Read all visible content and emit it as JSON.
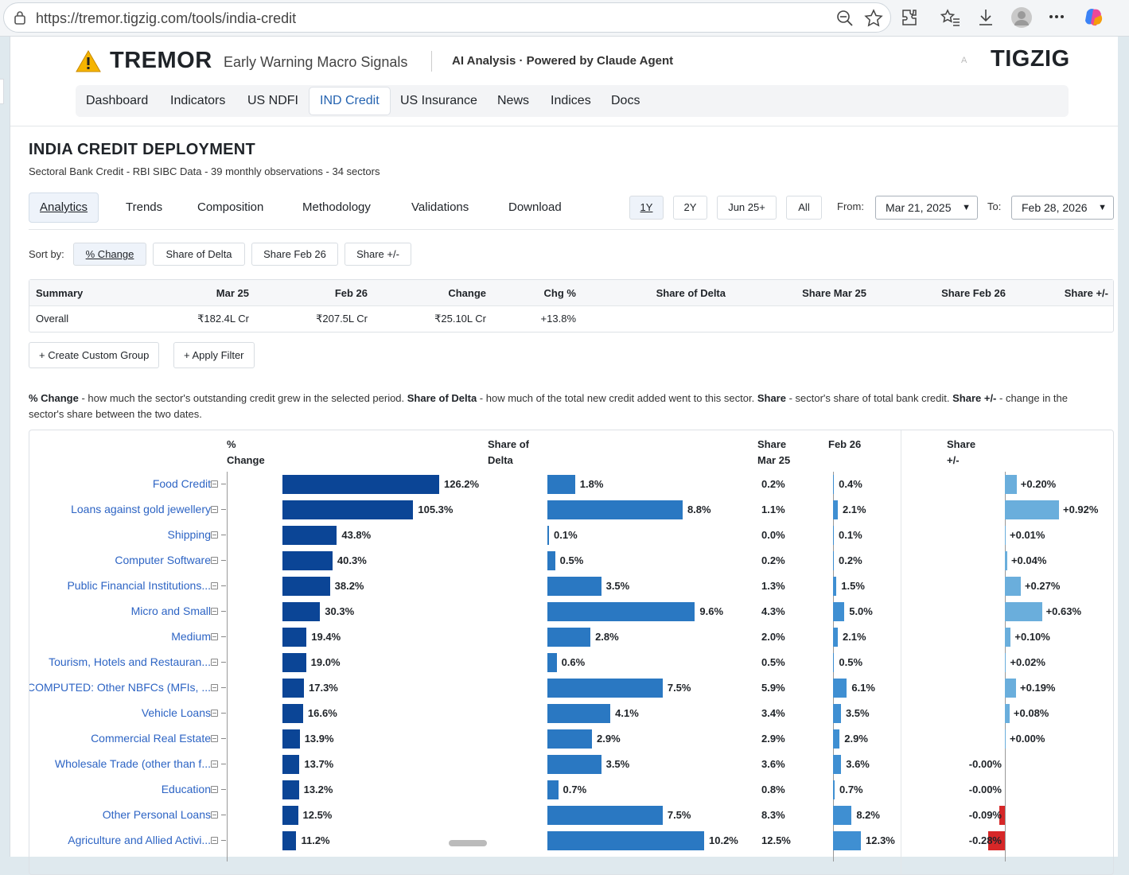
{
  "browser": {
    "url": "https://tremor.tigzig.com/tools/india-credit"
  },
  "header": {
    "brand_title": "TREMOR",
    "brand_subtitle": "Early Warning Macro Signals",
    "ai_text": "AI Analysis · Powered by Claude Agent",
    "small_a": "A",
    "logo": "TIGZIG"
  },
  "nav": {
    "items": [
      "Dashboard",
      "Indicators",
      "US NDFI",
      "IND Credit",
      "US Insurance",
      "News",
      "Indices",
      "Docs"
    ],
    "active": "IND Credit"
  },
  "page": {
    "title": "INDIA CREDIT DEPLOYMENT",
    "subtitle": "Sectoral Bank Credit - RBI SIBC Data - 39 monthly observations - 34 sectors"
  },
  "tabs": {
    "items": [
      "Analytics",
      "Trends",
      "Composition",
      "Methodology",
      "Validations",
      "Download"
    ],
    "active": "Analytics"
  },
  "period": {
    "buttons": [
      "1Y",
      "2Y",
      "Jun 25+",
      "All"
    ],
    "active": "1Y",
    "from_label": "From:",
    "from_value": "Mar 21, 2025",
    "to_label": "To:",
    "to_value": "Feb 28, 2026"
  },
  "sort": {
    "label": "Sort by:",
    "options": [
      "% Change",
      "Share of Delta",
      "Share Feb 26",
      "Share +/-"
    ],
    "active": "% Change"
  },
  "summary": {
    "headers": [
      "Summary",
      "Mar 25",
      "Feb 26",
      "Change",
      "Chg %",
      "Share of Delta",
      "Share Mar 25",
      "Share Feb 26",
      "Share +/-"
    ],
    "row": [
      "Overall",
      "₹182.4L Cr",
      "₹207.5L Cr",
      "₹25.10L Cr",
      "+13.8%",
      "",
      "",
      "",
      ""
    ]
  },
  "actions": {
    "create_group": "+ Create Custom Group",
    "apply_filter": "+ Apply Filter"
  },
  "description": {
    "t1": "% Change",
    "d1": " - how much the sector's outstanding credit grew in the selected period. ",
    "t2": "Share of Delta",
    "d2": " - how much of the total new credit added went to this sector. ",
    "t3": "Share",
    "d3": " - sector's share of total bank credit. ",
    "t4": "Share +/-",
    "d4": " - change in the sector's share between the two dates."
  },
  "chart_headers": {
    "pct_change": [
      "%",
      "Change"
    ],
    "share_delta": [
      "Share of",
      "Delta"
    ],
    "share_mar": [
      "Share",
      "Mar 25"
    ],
    "share_feb": [
      "",
      "Feb 26"
    ],
    "share_pm": [
      "Share",
      "+/-"
    ]
  },
  "colors": {
    "pct_change_bar": "#0b4596",
    "delta_bar": "#2a78c2",
    "share_feb_bar": "#3f8fd2",
    "positive_pm_bar": "#6aaedc",
    "negative_pm_bar": "#d62728",
    "link": "#2d64c4"
  },
  "chart_data": {
    "type": "bar",
    "categories": [
      "Food Credit",
      "Loans against gold jewellery",
      "Shipping",
      "Computer Software",
      "Public Financial Institutions...",
      "Micro and Small",
      "Medium",
      "Tourism, Hotels and Restauran...",
      "COMPUTED: Other NBFCs (MFIs, ...",
      "Vehicle Loans",
      "Commercial Real Estate",
      "Wholesale Trade (other than f...",
      "Education",
      "Other Personal Loans",
      "Agriculture and Allied Activi..."
    ],
    "series": [
      {
        "name": "% Change",
        "values": [
          126.2,
          105.3,
          43.8,
          40.3,
          38.2,
          30.3,
          19.4,
          19.0,
          17.3,
          16.6,
          13.9,
          13.7,
          13.2,
          12.5,
          11.2
        ]
      },
      {
        "name": "Share of Delta",
        "values": [
          1.8,
          8.8,
          0.1,
          0.5,
          3.5,
          9.6,
          2.8,
          0.6,
          7.5,
          4.1,
          2.9,
          3.5,
          0.7,
          7.5,
          10.2
        ]
      },
      {
        "name": "Share Mar 25",
        "values": [
          0.2,
          1.1,
          0.0,
          0.2,
          1.3,
          4.3,
          2.0,
          0.5,
          5.9,
          3.4,
          2.9,
          3.6,
          0.8,
          8.3,
          12.5
        ]
      },
      {
        "name": "Feb 26",
        "values": [
          0.4,
          2.1,
          0.1,
          0.2,
          1.5,
          5.0,
          2.1,
          0.5,
          6.1,
          3.5,
          2.9,
          3.6,
          0.7,
          8.2,
          12.3
        ]
      },
      {
        "name": "Share +/-",
        "values": [
          0.2,
          0.92,
          0.01,
          0.04,
          0.27,
          0.63,
          0.1,
          0.02,
          0.19,
          0.08,
          0.0,
          -0.0,
          -0.0,
          -0.09,
          -0.28
        ]
      }
    ],
    "value_labels": {
      "pct": [
        "126.2%",
        "105.3%",
        "43.8%",
        "40.3%",
        "38.2%",
        "30.3%",
        "19.4%",
        "19.0%",
        "17.3%",
        "16.6%",
        "13.9%",
        "13.7%",
        "13.2%",
        "12.5%",
        "11.2%"
      ],
      "delta": [
        "1.8%",
        "8.8%",
        "0.1%",
        "0.5%",
        "3.5%",
        "9.6%",
        "2.8%",
        "0.6%",
        "7.5%",
        "4.1%",
        "2.9%",
        "3.5%",
        "0.7%",
        "7.5%",
        "10.2%"
      ],
      "share_mar": [
        "0.2%",
        "1.1%",
        "0.0%",
        "0.2%",
        "1.3%",
        "4.3%",
        "2.0%",
        "0.5%",
        "5.9%",
        "3.4%",
        "2.9%",
        "3.6%",
        "0.8%",
        "8.3%",
        "12.5%"
      ],
      "share_feb": [
        "0.4%",
        "2.1%",
        "0.1%",
        "0.2%",
        "1.5%",
        "5.0%",
        "2.1%",
        "0.5%",
        "6.1%",
        "3.5%",
        "2.9%",
        "3.6%",
        "0.7%",
        "8.2%",
        "12.3%"
      ],
      "share_pm": [
        "+0.20%",
        "+0.92%",
        "+0.01%",
        "+0.04%",
        "+0.27%",
        "+0.63%",
        "+0.10%",
        "+0.02%",
        "+0.19%",
        "+0.08%",
        "+0.00%",
        "-0.00%",
        "-0.00%",
        "-0.09%",
        "-0.28%"
      ]
    }
  }
}
